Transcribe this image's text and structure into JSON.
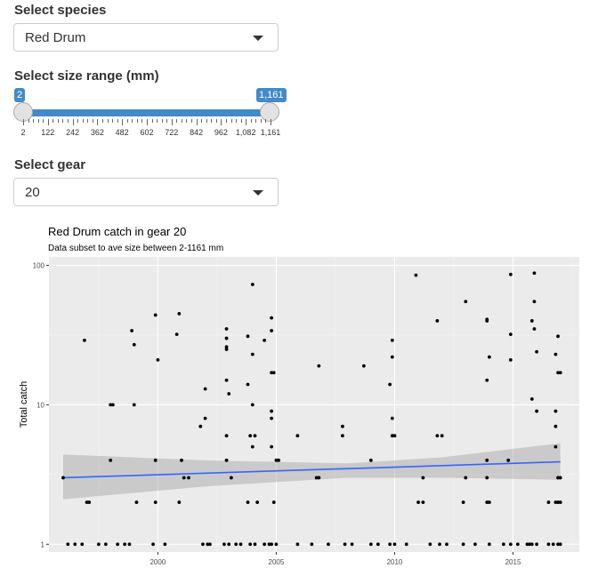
{
  "species": {
    "label": "Select species",
    "value": "Red Drum"
  },
  "size": {
    "label": "Select size range (mm)",
    "min_value": "2",
    "max_value": "1,161",
    "ticks": [
      "2",
      "122",
      "242",
      "362",
      "482",
      "602",
      "722",
      "842",
      "962",
      "1,082",
      "1,161"
    ]
  },
  "gear": {
    "label": "Select gear",
    "value": "20"
  },
  "chart_data": {
    "type": "scatter",
    "title": "Red Drum catch in gear 20",
    "subtitle": "Data subset to ave size between 2-1161 mm",
    "xlabel": "",
    "ylabel": "Total catch",
    "y_scale": "log10",
    "xlim": [
      1995.4,
      2017.8
    ],
    "ylim": [
      1,
      100
    ],
    "x_ticks": [
      "2000",
      "2005",
      "2010",
      "2015"
    ],
    "y_ticks": [
      "1",
      "10",
      "100"
    ],
    "grid": true,
    "trend": {
      "x": [
        1996,
        2017
      ],
      "y": [
        3.0,
        3.9
      ]
    },
    "points": [
      [
        1996,
        3
      ],
      [
        1996.2,
        1
      ],
      [
        1996.5,
        1
      ],
      [
        1996.8,
        1
      ],
      [
        1996.9,
        29
      ],
      [
        1997,
        2
      ],
      [
        1997.1,
        2
      ],
      [
        1997.5,
        1
      ],
      [
        1997.8,
        1
      ],
      [
        1998,
        4
      ],
      [
        1998,
        10
      ],
      [
        1998.1,
        10
      ],
      [
        1998.3,
        1
      ],
      [
        1998.6,
        1
      ],
      [
        1998.8,
        1
      ],
      [
        1998.9,
        34
      ],
      [
        1999,
        27
      ],
      [
        1999,
        10
      ],
      [
        1999.1,
        2
      ],
      [
        1999.8,
        1
      ],
      [
        1999.9,
        44
      ],
      [
        1999.9,
        2
      ],
      [
        1999.9,
        4
      ],
      [
        2000,
        21
      ],
      [
        2000.3,
        1
      ],
      [
        2000.8,
        32
      ],
      [
        2000.9,
        45
      ],
      [
        2000.9,
        2
      ],
      [
        2001,
        4
      ],
      [
        2001.1,
        3
      ],
      [
        2001.3,
        3
      ],
      [
        2001.8,
        7
      ],
      [
        2001.9,
        1
      ],
      [
        2002,
        13
      ],
      [
        2002,
        8
      ],
      [
        2002.1,
        1
      ],
      [
        2002.2,
        1
      ],
      [
        2002.8,
        1
      ],
      [
        2002.9,
        35
      ],
      [
        2002.9,
        30
      ],
      [
        2002.9,
        26
      ],
      [
        2002.9,
        25
      ],
      [
        2002.9,
        15
      ],
      [
        2003,
        12
      ],
      [
        2002.9,
        6
      ],
      [
        2002.9,
        4
      ],
      [
        2003,
        1
      ],
      [
        2003.1,
        3
      ],
      [
        2003.3,
        1
      ],
      [
        2003.5,
        1
      ],
      [
        2003.8,
        31
      ],
      [
        2003.8,
        14
      ],
      [
        2003.8,
        2
      ],
      [
        2003.9,
        6
      ],
      [
        2003.9,
        1
      ],
      [
        2004,
        73
      ],
      [
        2004,
        23
      ],
      [
        2004,
        10
      ],
      [
        2004,
        5
      ],
      [
        2004.1,
        6
      ],
      [
        2004.1,
        1
      ],
      [
        2004.2,
        2
      ],
      [
        2004.5,
        29
      ],
      [
        2004.5,
        1
      ],
      [
        2004.7,
        1
      ],
      [
        2004.8,
        42
      ],
      [
        2004.8,
        34
      ],
      [
        2004.8,
        17
      ],
      [
        2004.8,
        9
      ],
      [
        2004.8,
        8
      ],
      [
        2004.8,
        5
      ],
      [
        2004.8,
        1
      ],
      [
        2004.9,
        17
      ],
      [
        2004.9,
        2
      ],
      [
        2005,
        4
      ],
      [
        2005.1,
        4
      ],
      [
        2005,
        1
      ],
      [
        2005.9,
        6
      ],
      [
        2005.9,
        1
      ],
      [
        2006.5,
        1
      ],
      [
        2006.7,
        3
      ],
      [
        2006.8,
        19
      ],
      [
        2006.8,
        3
      ],
      [
        2007.2,
        1
      ],
      [
        2007.8,
        7
      ],
      [
        2007.8,
        6
      ],
      [
        2007.9,
        1
      ],
      [
        2008.2,
        1
      ],
      [
        2008.7,
        19
      ],
      [
        2009,
        4
      ],
      [
        2009,
        1
      ],
      [
        2009.3,
        1
      ],
      [
        2009.8,
        1
      ],
      [
        2009.8,
        14
      ],
      [
        2009.9,
        29
      ],
      [
        2009.9,
        22
      ],
      [
        2009.9,
        8
      ],
      [
        2009.9,
        6
      ],
      [
        2010,
        6
      ],
      [
        2010,
        1
      ],
      [
        2010.5,
        1
      ],
      [
        2010.9,
        85
      ],
      [
        2011,
        2
      ],
      [
        2011.2,
        2
      ],
      [
        2011.2,
        3
      ],
      [
        2011.5,
        1
      ],
      [
        2011.8,
        40
      ],
      [
        2011.8,
        6
      ],
      [
        2011.9,
        1
      ],
      [
        2012,
        6
      ],
      [
        2012.2,
        1
      ],
      [
        2012.9,
        2
      ],
      [
        2012.9,
        1
      ],
      [
        2013,
        55
      ],
      [
        2013,
        3
      ],
      [
        2013.4,
        1
      ],
      [
        2013.9,
        40
      ],
      [
        2013.9,
        41
      ],
      [
        2013.9,
        15
      ],
      [
        2014,
        22
      ],
      [
        2013.9,
        4
      ],
      [
        2013.9,
        3
      ],
      [
        2013.9,
        2
      ],
      [
        2014,
        2
      ],
      [
        2014,
        1
      ],
      [
        2014.6,
        1
      ],
      [
        2014.8,
        4
      ],
      [
        2014.9,
        86
      ],
      [
        2014.9,
        32
      ],
      [
        2014.9,
        21
      ],
      [
        2014.9,
        1
      ],
      [
        2015.2,
        1
      ],
      [
        2015.6,
        1
      ],
      [
        2015.7,
        1
      ],
      [
        2015.8,
        40
      ],
      [
        2015.8,
        11
      ],
      [
        2015.8,
        1
      ],
      [
        2015.9,
        88
      ],
      [
        2015.9,
        55
      ],
      [
        2015.9,
        35
      ],
      [
        2016,
        24
      ],
      [
        2016,
        9
      ],
      [
        2016,
        1
      ],
      [
        2016.5,
        2
      ],
      [
        2016.5,
        1
      ],
      [
        2016.7,
        1
      ],
      [
        2016.8,
        23
      ],
      [
        2016.8,
        9
      ],
      [
        2016.8,
        7
      ],
      [
        2016.8,
        5
      ],
      [
        2016.8,
        2
      ],
      [
        2016.9,
        31
      ],
      [
        2016.9,
        17
      ],
      [
        2016.9,
        3
      ],
      [
        2016.9,
        2
      ],
      [
        2017,
        17
      ],
      [
        2016.9,
        1
      ],
      [
        2017,
        3
      ],
      [
        2017,
        2
      ],
      [
        2017,
        1
      ]
    ]
  }
}
